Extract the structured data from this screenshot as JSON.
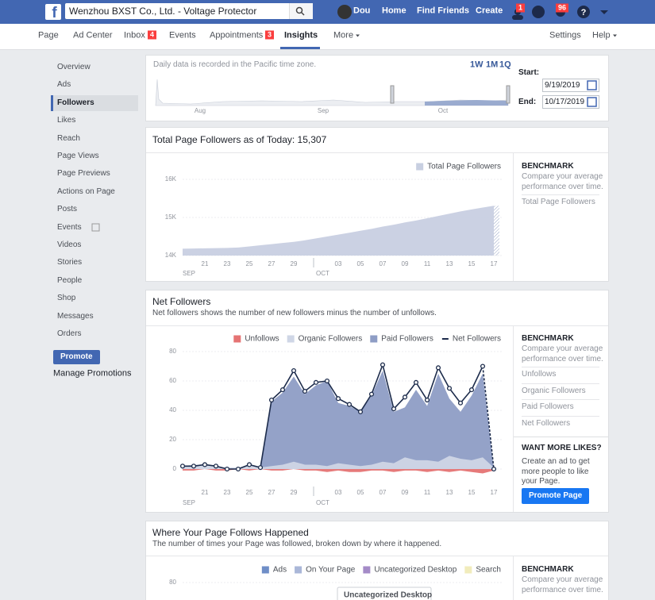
{
  "topbar": {
    "page_name": "Wenzhou BXST Co., Ltd. - Voltage Protector",
    "user": "Dou",
    "links": [
      "Home",
      "Find Friends",
      "Create"
    ],
    "friend_requests": "1",
    "notifications": "96"
  },
  "tabs": {
    "items": [
      {
        "label": "Page"
      },
      {
        "label": "Ad Center"
      },
      {
        "label": "Inbox",
        "badge": "4"
      },
      {
        "label": "Events"
      },
      {
        "label": "Appointments",
        "badge": "3"
      },
      {
        "label": "Insights"
      },
      {
        "label": "More"
      }
    ],
    "right": [
      "Settings",
      "Help"
    ]
  },
  "sidebar": {
    "items": [
      "Overview",
      "Ads",
      "Followers",
      "Likes",
      "Reach",
      "Page Views",
      "Page Previews",
      "Actions on Page",
      "Posts",
      "Events",
      "Videos",
      "Stories",
      "People",
      "Shop",
      "Messages",
      "Orders"
    ],
    "promote": "Promote",
    "manage": "Manage Promotions"
  },
  "range": {
    "note": "Daily data is recorded in the Pacific time zone.",
    "presets": [
      "1W",
      "1M",
      "1Q"
    ],
    "months": [
      "Aug",
      "Sep",
      "Oct"
    ],
    "start_label": "Start:",
    "start": "9/19/2019",
    "end_label": "End:",
    "end": "10/17/2019"
  },
  "chart_data": [
    {
      "type": "area",
      "title": "Total Page Followers as of Today: 15,307",
      "categories": [
        null,
        null,
        "21",
        null,
        "23",
        null,
        "25",
        null,
        "27",
        null,
        "29",
        null,
        null,
        null,
        "03",
        null,
        "05",
        null,
        "07",
        null,
        "09",
        null,
        "11",
        null,
        "13",
        null,
        "15",
        null,
        "17"
      ],
      "months": [
        "SEP",
        "OCT"
      ],
      "series": [
        {
          "name": "Total Page Followers",
          "color": "#c8cfe1",
          "style": "area",
          "values": [
            14180,
            14185,
            14190,
            14195,
            14200,
            14210,
            14240,
            14270,
            14300,
            14330,
            14360,
            14400,
            14450,
            14500,
            14550,
            14600,
            14650,
            14700,
            14760,
            14810,
            14870,
            14920,
            14980,
            15040,
            15100,
            15160,
            15210,
            15260,
            15307
          ]
        }
      ],
      "ylim": [
        14000,
        16000
      ],
      "yticks": [
        {
          "value": 14000,
          "label": "14K"
        },
        {
          "value": 15000,
          "label": "15K"
        },
        {
          "value": 16000,
          "label": "16K"
        }
      ],
      "grid": true
    },
    {
      "type": "area",
      "title": "Net Followers",
      "subtitle": "Net followers shows the number of new followers minus the number of unfollows.",
      "categories": [
        null,
        null,
        "21",
        null,
        "23",
        null,
        "25",
        null,
        "27",
        null,
        "29",
        null,
        null,
        null,
        "03",
        null,
        "05",
        null,
        "07",
        null,
        "09",
        null,
        "11",
        null,
        "13",
        null,
        "15",
        null,
        "17"
      ],
      "months": [
        "SEP",
        "OCT"
      ],
      "series": [
        {
          "name": "Unfollows",
          "color": "#e57373",
          "style": "area",
          "values": [
            -1,
            -1,
            0,
            -1,
            -1,
            0,
            -1,
            0,
            -1,
            -1,
            0,
            -1,
            -1,
            -2,
            -1,
            -2,
            -2,
            -1,
            -1,
            -2,
            -1,
            -1,
            -2,
            -1,
            -2,
            -1,
            -2,
            -3,
            -1
          ]
        },
        {
          "name": "Organic Followers",
          "color": "#cfd6e6",
          "style": "area",
          "values": [
            2,
            3,
            3,
            2,
            1,
            1,
            3,
            1,
            2,
            3,
            5,
            3,
            3,
            2,
            4,
            3,
            2,
            3,
            5,
            4,
            8,
            6,
            6,
            5,
            9,
            7,
            6,
            8,
            1
          ]
        },
        {
          "name": "Paid Followers",
          "color": "#8e9dc5",
          "style": "area",
          "values": [
            0,
            0,
            0,
            0,
            0,
            0,
            0,
            0,
            46,
            52,
            63,
            51,
            57,
            60,
            45,
            43,
            39,
            50,
            67,
            39,
            42,
            54,
            43,
            65,
            48,
            39,
            50,
            65,
            0
          ]
        },
        {
          "name": "Net Followers",
          "color": "#1c2b4b",
          "style": "line",
          "values": [
            2,
            2,
            3,
            2,
            0,
            0,
            3,
            1,
            47,
            54,
            67,
            53,
            59,
            60,
            48,
            44,
            39,
            51,
            71,
            41,
            49,
            59,
            47,
            69,
            55,
            45,
            54,
            70,
            0
          ]
        }
      ],
      "ylim": [
        -5,
        80
      ],
      "yticks": [
        0,
        20,
        40,
        60,
        80
      ],
      "grid": true
    },
    {
      "type": "area",
      "title": "Where Your Page Follows Happened",
      "subtitle": "The number of times your Page was followed, broken down by where it happened.",
      "series": [
        {
          "name": "Ads",
          "color": "#6f8ec7"
        },
        {
          "name": "On Your Page",
          "color": "#aab7d8"
        },
        {
          "name": "Uncategorized Desktop",
          "color": "#a48bc7"
        },
        {
          "name": "Search",
          "color": "#f1ecbc"
        }
      ],
      "tooltip": "Uncategorized Desktop",
      "ylim": [
        0,
        80
      ],
      "yticks": [
        80
      ],
      "grid": true
    }
  ],
  "benchmarks": [
    {
      "title": "BENCHMARK",
      "text": "Compare your average performance over time.",
      "items": [
        "Total Page Followers"
      ]
    },
    {
      "title": "BENCHMARK",
      "text": "Compare your average performance over time.",
      "items": [
        "Unfollows",
        "Organic Followers",
        "Paid Followers",
        "Net Followers"
      ],
      "promo": {
        "title": "WANT MORE LIKES?",
        "text": "Create an ad to get more people to like your Page.",
        "button": "Promote Page"
      }
    },
    {
      "title": "BENCHMARK",
      "text": "Compare your average performance over time.",
      "items": []
    }
  ]
}
